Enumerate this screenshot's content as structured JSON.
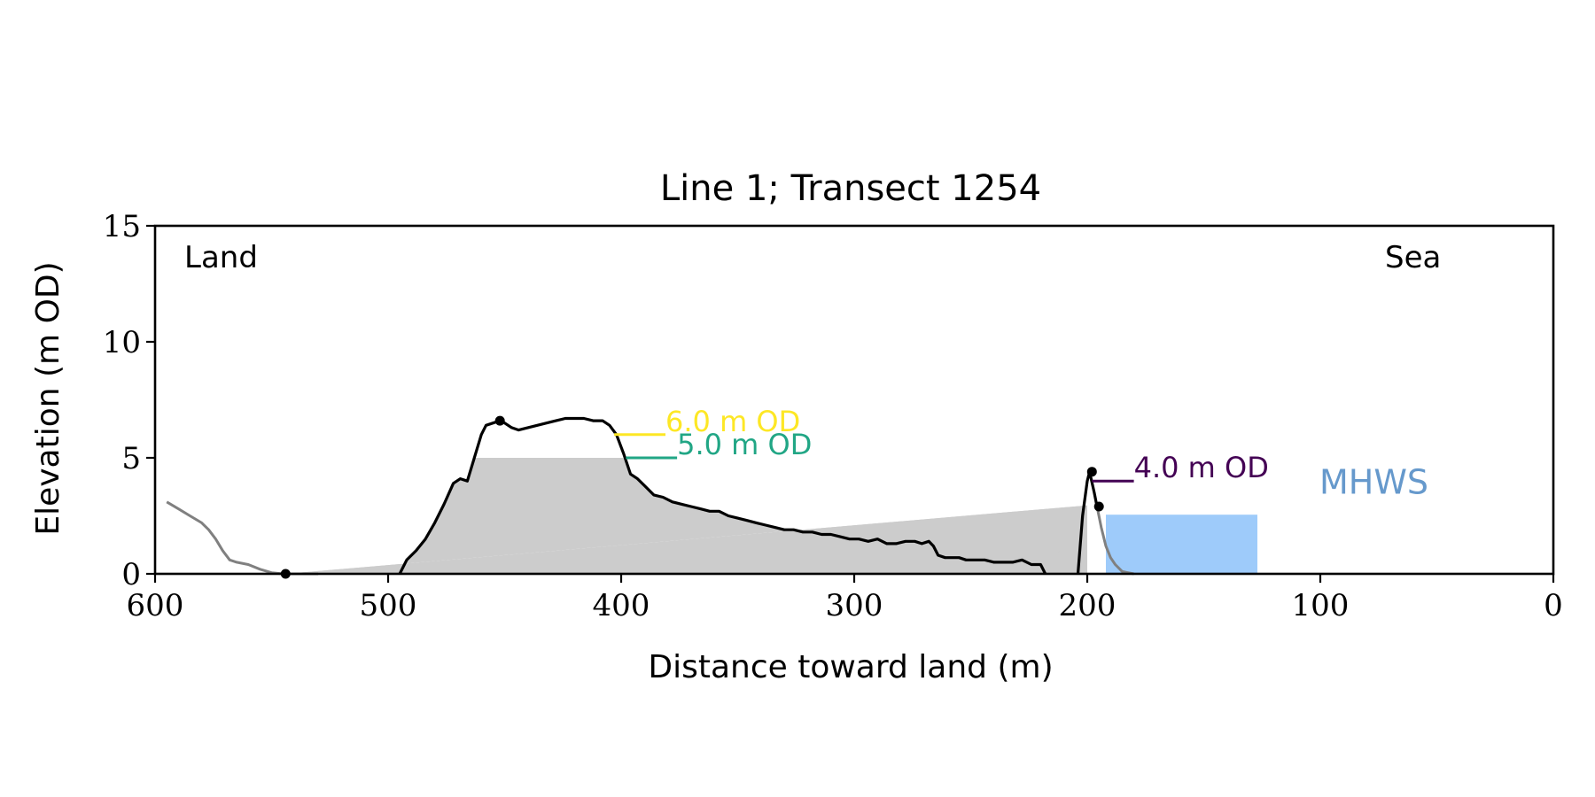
{
  "chart_data": {
    "type": "line",
    "title": "Line 1; Transect 1254",
    "xlabel": "Distance toward land (m)",
    "ylabel": "Elevation (m OD)",
    "xlim": [
      600,
      0
    ],
    "ylim": [
      0,
      15
    ],
    "x_inverted": true,
    "grid": false,
    "xticks": [
      600,
      500,
      400,
      300,
      200,
      100,
      0
    ],
    "yticks": [
      0,
      5,
      10,
      15
    ],
    "xtick_labels": [
      "600",
      "500",
      "400",
      "300",
      "200",
      "100",
      "0"
    ],
    "ytick_labels": [
      "0",
      "5",
      "10",
      "15"
    ],
    "corner_labels": {
      "left": "Land",
      "right": "Sea"
    },
    "colors": {
      "profile": "#000000",
      "profile_context": "#808080",
      "shadow": "#cccccc",
      "level_6": "#fde725",
      "level_5": "#21a685",
      "level_4": "#440154",
      "mhws": "#9ecbfa",
      "mhws_text": "#6699cc"
    },
    "profile_main": {
      "x": [
        495,
        492,
        488,
        484,
        480,
        476,
        472,
        469,
        466,
        463,
        460,
        458,
        455,
        452,
        450,
        447,
        444,
        440,
        436,
        432,
        428,
        424,
        420,
        416,
        412,
        408,
        405,
        402,
        399,
        396,
        393,
        390,
        386,
        382,
        378,
        374,
        370,
        366,
        362,
        358,
        354,
        350,
        346,
        342,
        338,
        334,
        330,
        326,
        322,
        318,
        314,
        310,
        306,
        302,
        298,
        294,
        290,
        286,
        282,
        278,
        274,
        271,
        268,
        266,
        264,
        261,
        258,
        255,
        252,
        248,
        244,
        240,
        236,
        232,
        228,
        224,
        220,
        218
      ],
      "y": [
        0.0,
        0.6,
        1.0,
        1.5,
        2.2,
        3.0,
        3.9,
        4.1,
        4.0,
        5.0,
        6.0,
        6.4,
        6.5,
        6.6,
        6.5,
        6.3,
        6.2,
        6.3,
        6.4,
        6.5,
        6.6,
        6.7,
        6.7,
        6.7,
        6.6,
        6.6,
        6.4,
        6.0,
        5.2,
        4.3,
        4.1,
        3.8,
        3.4,
        3.3,
        3.1,
        3.0,
        2.9,
        2.8,
        2.7,
        2.7,
        2.5,
        2.4,
        2.3,
        2.2,
        2.1,
        2.0,
        1.9,
        1.9,
        1.8,
        1.8,
        1.7,
        1.7,
        1.6,
        1.5,
        1.5,
        1.4,
        1.5,
        1.3,
        1.3,
        1.4,
        1.4,
        1.3,
        1.4,
        1.2,
        0.8,
        0.7,
        0.7,
        0.7,
        0.6,
        0.6,
        0.6,
        0.5,
        0.5,
        0.5,
        0.6,
        0.4,
        0.4,
        0.0
      ]
    },
    "profile_land_context": {
      "x": [
        595,
        590,
        585,
        580,
        577,
        574,
        571,
        568,
        565,
        560,
        555,
        550,
        545,
        540,
        530
      ],
      "y": [
        3.1,
        2.8,
        2.5,
        2.2,
        1.9,
        1.5,
        1.0,
        0.6,
        0.5,
        0.4,
        0.2,
        0.05,
        0.0,
        0.0,
        0.0
      ]
    },
    "barrier_main": {
      "x": [
        204,
        202,
        200,
        199,
        197,
        196
      ],
      "y": [
        0.0,
        2.5,
        4.0,
        4.4,
        3.5,
        3.0
      ]
    },
    "barrier_context": {
      "x": [
        196,
        194,
        192,
        190,
        188,
        185,
        180
      ],
      "y": [
        3.0,
        2.0,
        1.2,
        0.7,
        0.4,
        0.1,
        0.0
      ]
    },
    "shadow_region": {
      "x": [
        544,
        200,
        200,
        544
      ],
      "y": [
        0.0,
        2.95,
        0.0,
        0.0
      ]
    },
    "points": [
      {
        "x": 544,
        "y": 0.0
      },
      {
        "x": 452,
        "y": 6.6
      },
      {
        "x": 198,
        "y": 4.4
      },
      {
        "x": 195,
        "y": 2.9
      }
    ],
    "levels": [
      {
        "label": "6.0 m OD",
        "value": 6.0,
        "x_from": 462,
        "x_to": 403,
        "line_to": 381,
        "text_x": 381,
        "key": "level_6"
      },
      {
        "label": "5.0 m OD",
        "value": 5.0,
        "x_from": 462,
        "x_to": 398,
        "line_to": 376,
        "text_x": 376,
        "key": "level_5"
      },
      {
        "label": "4.0 m OD",
        "value": 4.0,
        "x_from": 198,
        "x_to": 198,
        "line_to": 180,
        "text_x": 180,
        "key": "level_4"
      }
    ],
    "mhws": {
      "label": "MHWS",
      "x_left": 192,
      "x_right": 127,
      "y_top": 2.55,
      "text_x": 77,
      "text_y": 3.45
    }
  }
}
